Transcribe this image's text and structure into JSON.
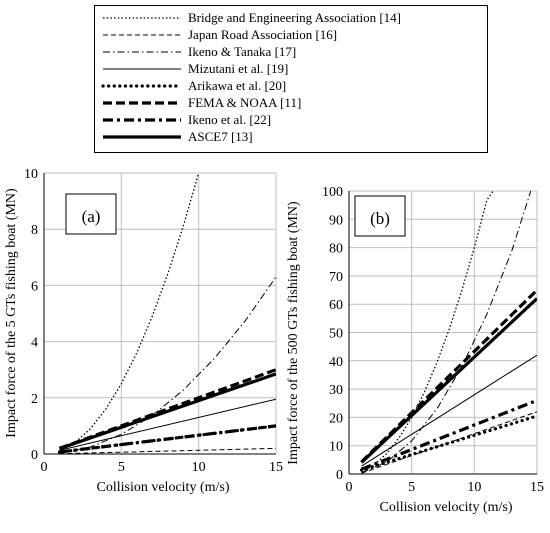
{
  "legend": {
    "items": [
      {
        "label": "Bridge and Engineering Association [14]",
        "style": "dotted-thin"
      },
      {
        "label": "Japan Road Association [16]",
        "style": "dashed-thin"
      },
      {
        "label": "Ikeno & Tanaka [17]",
        "style": "dashdot-thin"
      },
      {
        "label": "Mizutani et al. [19]",
        "style": "solid-thin"
      },
      {
        "label": "Arikawa et al. [20]",
        "style": "dotted-thick"
      },
      {
        "label": "FEMA & NOAA [11]",
        "style": "dashed-thick"
      },
      {
        "label": "Ikeno et al. [22]",
        "style": "dashdot-thick"
      },
      {
        "label": "ASCE7 [13]",
        "style": "solid-thick"
      }
    ]
  },
  "chart_data": [
    {
      "type": "line",
      "panel_label": "(a)",
      "xlabel": "Collision velocity (m/s)",
      "ylabel": "Impact force of the 5 GTs fishing boat (MN)",
      "xlim": [
        0,
        15
      ],
      "ylim": [
        0,
        10
      ],
      "xticks": [
        0,
        5,
        10,
        15
      ],
      "yticks": [
        0,
        2,
        4,
        6,
        8,
        10
      ],
      "grid": true,
      "series": [
        {
          "name": "Bridge and Engineering Association [14]",
          "style": "dotted-thin",
          "x": [
            1,
            2,
            3,
            4,
            5,
            6,
            7,
            8,
            9,
            10
          ],
          "y": [
            0.1,
            0.4,
            0.9,
            1.6,
            2.5,
            3.6,
            4.9,
            6.4,
            8.1,
            10
          ]
        },
        {
          "name": "Japan Road Association [16]",
          "style": "dashed-thin",
          "x": [
            1,
            15
          ],
          "y": [
            0.01,
            0.2
          ]
        },
        {
          "name": "Ikeno & Tanaka [17]",
          "style": "dashdot-thin",
          "x": [
            1,
            3,
            5,
            7,
            9,
            11,
            13,
            15
          ],
          "y": [
            0.03,
            0.25,
            0.7,
            1.37,
            2.27,
            3.39,
            4.73,
            6.3
          ]
        },
        {
          "name": "Mizutani et al. [19]",
          "style": "solid-thin",
          "x": [
            1,
            15
          ],
          "y": [
            0.13,
            1.95
          ]
        },
        {
          "name": "Arikawa et al. [20]",
          "style": "dotted-thick",
          "x": [
            1,
            15
          ],
          "y": [
            0.07,
            1.0
          ]
        },
        {
          "name": "FEMA & NOAA [11]",
          "style": "dashed-thick",
          "x": [
            1,
            15
          ],
          "y": [
            0.2,
            3.0
          ]
        },
        {
          "name": "Ikeno et al. [22]",
          "style": "dashdot-thick",
          "x": [
            1,
            15
          ],
          "y": [
            0.07,
            1.0
          ]
        },
        {
          "name": "ASCE7 [13]",
          "style": "solid-thick",
          "x": [
            1,
            15
          ],
          "y": [
            0.19,
            2.85
          ]
        }
      ]
    },
    {
      "type": "line",
      "panel_label": "(b)",
      "xlabel": "Collision velocity (m/s)",
      "ylabel": "Impact force of the 500 GTs fishing boat (MN)",
      "xlim": [
        0,
        15
      ],
      "ylim": [
        0,
        100
      ],
      "xticks": [
        0,
        5,
        10,
        15
      ],
      "yticks": [
        0,
        10,
        20,
        30,
        40,
        50,
        60,
        70,
        80,
        90,
        100
      ],
      "grid": true,
      "series": [
        {
          "name": "Bridge and Engineering Association [14]",
          "style": "dotted-thin",
          "x": [
            1,
            2,
            3,
            4,
            5,
            6,
            7,
            8,
            9,
            10,
            11,
            11.5
          ],
          "y": [
            0.8,
            3.2,
            7.2,
            12.8,
            20,
            28.8,
            39.2,
            51.2,
            64.8,
            80,
            96.8,
            100
          ]
        },
        {
          "name": "Japan Road Association [16]",
          "style": "dashed-thin",
          "x": [
            1,
            15
          ],
          "y": [
            0.3,
            22
          ]
        },
        {
          "name": "Ikeno & Tanaka [17]",
          "style": "dashdot-thin",
          "x": [
            1,
            3,
            5,
            7,
            9,
            11,
            13,
            14.5
          ],
          "y": [
            0.5,
            4.2,
            11.7,
            22.9,
            37.9,
            56.5,
            79,
            100
          ]
        },
        {
          "name": "Mizutani et al. [19]",
          "style": "solid-thin",
          "x": [
            1,
            15
          ],
          "y": [
            2.8,
            42
          ]
        },
        {
          "name": "Arikawa et al. [20]",
          "style": "dotted-thick",
          "x": [
            1,
            15
          ],
          "y": [
            1.4,
            20.5
          ]
        },
        {
          "name": "FEMA & NOAA [11]",
          "style": "dashed-thick",
          "x": [
            1,
            15
          ],
          "y": [
            4.3,
            65
          ]
        },
        {
          "name": "Ikeno et al. [22]",
          "style": "dashdot-thick",
          "x": [
            1,
            15
          ],
          "y": [
            1.7,
            26
          ]
        },
        {
          "name": "ASCE7 [13]",
          "style": "solid-thick",
          "x": [
            1,
            15
          ],
          "y": [
            4.1,
            62
          ]
        }
      ]
    }
  ]
}
